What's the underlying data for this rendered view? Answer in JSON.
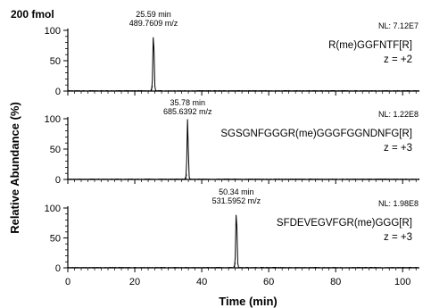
{
  "figure": {
    "corner_label": "200 fmol",
    "y_axis_label": "Relative Abundance (%)",
    "x_axis_label": "Time (min)"
  },
  "chart_data": [
    {
      "type": "line",
      "xlim": [
        0,
        105
      ],
      "ylim": [
        0,
        100
      ],
      "x_ticks": [
        "0",
        "20",
        "40",
        "60",
        "80",
        "100"
      ],
      "y_ticks": [
        "0",
        "50",
        "100"
      ],
      "nl": "NL: 7.12E7",
      "peptide": "R(me)GGFNTF[R]",
      "charge": "z = +2",
      "peak_time": "25.59 min",
      "peak_mz": "489.7609 m/z",
      "peak_rt": 25.59,
      "peak_height": 100,
      "grid": false
    },
    {
      "type": "line",
      "xlim": [
        0,
        105
      ],
      "ylim": [
        0,
        100
      ],
      "x_ticks": [
        "0",
        "20",
        "40",
        "60",
        "80",
        "100"
      ],
      "y_ticks": [
        "0",
        "50",
        "100"
      ],
      "nl": "NL: 1.22E8",
      "peptide": "SGSGNFGGGR(me)GGGFGGNDNFG[R]",
      "charge": "z = +3",
      "peak_time": "35.78 min",
      "peak_mz": "685.6392 m/z",
      "peak_rt": 35.78,
      "peak_height": 100,
      "grid": false
    },
    {
      "type": "line",
      "xlim": [
        0,
        105
      ],
      "ylim": [
        0,
        100
      ],
      "x_ticks": [
        "0",
        "20",
        "40",
        "60",
        "80",
        "100"
      ],
      "y_ticks": [
        "0",
        "50",
        "100"
      ],
      "nl": "NL: 1.98E8",
      "peptide": "SFDEVEGVFGR(me)GGG[R]",
      "charge": "z = +3",
      "peak_time": "50.34 min",
      "peak_mz": "531.5952 m/z",
      "peak_rt": 50.34,
      "peak_height": 100,
      "grid": false
    }
  ]
}
